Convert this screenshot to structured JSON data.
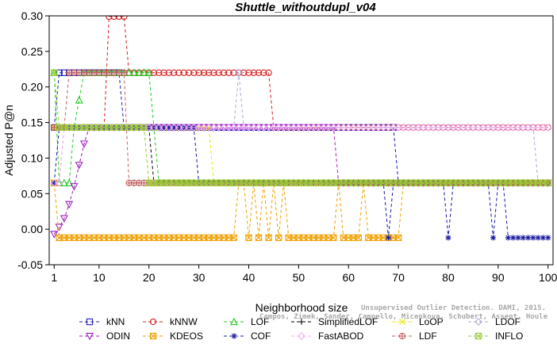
{
  "chart_data": {
    "type": "line",
    "title": "Shuttle_withoutdupl_v04",
    "xlabel": "Neighborhood size",
    "ylabel": "Adjusted P@n",
    "xlim": [
      0,
      101
    ],
    "ylim": [
      -0.05,
      0.3
    ],
    "xticks": [
      1,
      10,
      20,
      30,
      40,
      50,
      60,
      70,
      80,
      90,
      100
    ],
    "yticks": [
      "-0.05",
      "0.00",
      "0.05",
      "0.10",
      "0.15",
      "0.20",
      "0.25",
      "0.30"
    ],
    "grid": false,
    "legend_position": "bottom",
    "credit": [
      "Unsupervised Outlier Detection. DAMI, 2015.",
      "Campos, Zimek, Sander, Campello, Micenkova, Schubert, Assent, Houle"
    ],
    "series": [
      {
        "name": "kNN",
        "color": "#1f1fbf",
        "marker": "square",
        "points": [
          [
            1,
            0.143
          ],
          [
            2,
            0.22
          ],
          [
            14,
            0.22
          ],
          [
            15,
            0.143
          ],
          [
            69,
            0.143
          ],
          [
            70,
            0.065
          ],
          [
            100,
            0.065
          ]
        ]
      },
      {
        "name": "kNNW",
        "color": "#d62020",
        "marker": "circle",
        "points": [
          [
            1,
            0.143
          ],
          [
            11,
            0.143
          ],
          [
            12,
            0.299
          ],
          [
            15,
            0.299
          ],
          [
            16,
            0.22
          ],
          [
            44,
            0.22
          ],
          [
            45,
            0.143
          ],
          [
            100,
            0.143
          ]
        ]
      },
      {
        "name": "LOF",
        "color": "#22cc22",
        "marker": "triangle-up",
        "points": [
          [
            1,
            0.22
          ],
          [
            2,
            0.065
          ],
          [
            4,
            0.065
          ],
          [
            5,
            0.143
          ],
          [
            7,
            0.22
          ],
          [
            20,
            0.22
          ],
          [
            21,
            0.143
          ],
          [
            22,
            0.065
          ],
          [
            100,
            0.065
          ]
        ]
      },
      {
        "name": "SimplifiedLOF",
        "color": "#000000",
        "marker": "plus",
        "points": [
          [
            1,
            0.143
          ],
          [
            20,
            0.143
          ],
          [
            21,
            0.065
          ],
          [
            100,
            0.065
          ]
        ]
      },
      {
        "name": "LoOP",
        "color": "#e8e800",
        "marker": "x",
        "points": [
          [
            1,
            0.143
          ],
          [
            32,
            0.143
          ],
          [
            33,
            0.065
          ],
          [
            100,
            0.065
          ]
        ]
      },
      {
        "name": "LDOF",
        "color": "#aaaadd",
        "marker": "diamond",
        "points": [
          [
            1,
            0.065
          ],
          [
            2,
            0.065
          ],
          [
            3,
            0.143
          ],
          [
            37,
            0.143
          ],
          [
            38,
            0.22
          ],
          [
            39,
            0.143
          ],
          [
            97,
            0.143
          ],
          [
            98,
            0.065
          ],
          [
            100,
            0.065
          ]
        ]
      },
      {
        "name": "ODIN",
        "color": "#a020c0",
        "marker": "triangle-down",
        "points": [
          [
            1,
            -0.007
          ],
          [
            2,
            0.003
          ],
          [
            3,
            0.015
          ],
          [
            4,
            0.035
          ],
          [
            5,
            0.06
          ],
          [
            6,
            0.09
          ],
          [
            7,
            0.12
          ],
          [
            8,
            0.143
          ],
          [
            57,
            0.143
          ],
          [
            58,
            0.065
          ],
          [
            100,
            0.065
          ]
        ]
      },
      {
        "name": "KDEOS",
        "color": "#f0a000",
        "marker": "square-x",
        "points": [
          [
            1,
            0.065
          ],
          [
            2,
            -0.012
          ],
          [
            37,
            -0.012
          ],
          [
            38,
            0.065
          ],
          [
            39,
            0.065
          ],
          [
            40,
            -0.012
          ],
          [
            41,
            0.065
          ],
          [
            42,
            -0.012
          ],
          [
            43,
            0.065
          ],
          [
            44,
            -0.012
          ],
          [
            45,
            0.065
          ],
          [
            46,
            -0.012
          ],
          [
            47,
            0.065
          ],
          [
            48,
            -0.012
          ],
          [
            57,
            -0.012
          ],
          [
            58,
            0.065
          ],
          [
            59,
            -0.012
          ],
          [
            62,
            -0.012
          ],
          [
            63,
            0.065
          ],
          [
            64,
            -0.012
          ],
          [
            70,
            -0.012
          ],
          [
            71,
            0.065
          ],
          [
            100,
            0.065
          ]
        ]
      },
      {
        "name": "COF",
        "color": "#1a1aa0",
        "marker": "asterisk",
        "points": [
          [
            1,
            0.065
          ],
          [
            2,
            0.143
          ],
          [
            29,
            0.143
          ],
          [
            30,
            0.065
          ],
          [
            67,
            0.065
          ],
          [
            68,
            -0.012
          ],
          [
            69,
            0.065
          ],
          [
            79,
            0.065
          ],
          [
            80,
            -0.012
          ],
          [
            81,
            0.065
          ],
          [
            88,
            0.065
          ],
          [
            89,
            -0.012
          ],
          [
            90,
            0.065
          ],
          [
            91,
            0.065
          ],
          [
            92,
            -0.012
          ],
          [
            100,
            -0.012
          ]
        ]
      },
      {
        "name": "FastABOD",
        "color": "#f0b0f0",
        "marker": "diamond",
        "points": [
          [
            1,
            0.065
          ],
          [
            2,
            0.065
          ],
          [
            3,
            0.143
          ],
          [
            100,
            0.143
          ]
        ]
      },
      {
        "name": "LDF",
        "color": "#c06060",
        "marker": "circle-plus",
        "points": [
          [
            1,
            0.143
          ],
          [
            3,
            0.143
          ],
          [
            4,
            0.22
          ],
          [
            15,
            0.22
          ],
          [
            16,
            0.065
          ],
          [
            100,
            0.065
          ]
        ]
      },
      {
        "name": "INFLO",
        "color": "#9acd32",
        "marker": "square-x",
        "points": [
          [
            1,
            0.22
          ],
          [
            2,
            0.143
          ],
          [
            19,
            0.143
          ],
          [
            20,
            0.065
          ],
          [
            100,
            0.065
          ]
        ]
      }
    ]
  }
}
